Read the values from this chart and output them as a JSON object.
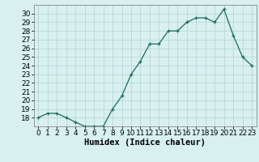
{
  "x": [
    0,
    1,
    2,
    3,
    4,
    5,
    6,
    7,
    8,
    9,
    10,
    11,
    12,
    13,
    14,
    15,
    16,
    17,
    18,
    19,
    20,
    21,
    22,
    23
  ],
  "y": [
    18,
    18.5,
    18.5,
    18,
    17.5,
    17,
    17,
    17,
    19,
    20.5,
    23,
    24.5,
    26.5,
    26.5,
    28,
    28,
    29,
    29.5,
    29.5,
    29,
    30.5,
    27.5,
    25,
    24
  ],
  "line_color": "#1a6b5a",
  "marker": "+",
  "marker_color": "#1a6b5a",
  "bg_color": "#d8f0f0",
  "grid_color": "#b8d8d8",
  "xlabel": "Humidex (Indice chaleur)",
  "ylabel": "",
  "ylim": [
    17,
    31
  ],
  "yticks": [
    18,
    19,
    20,
    21,
    22,
    23,
    24,
    25,
    26,
    27,
    28,
    29,
    30
  ],
  "xticks": [
    0,
    1,
    2,
    3,
    4,
    5,
    6,
    7,
    8,
    9,
    10,
    11,
    12,
    13,
    14,
    15,
    16,
    17,
    18,
    19,
    20,
    21,
    22,
    23
  ],
  "tick_fontsize": 6.5,
  "xlabel_fontsize": 7.5
}
